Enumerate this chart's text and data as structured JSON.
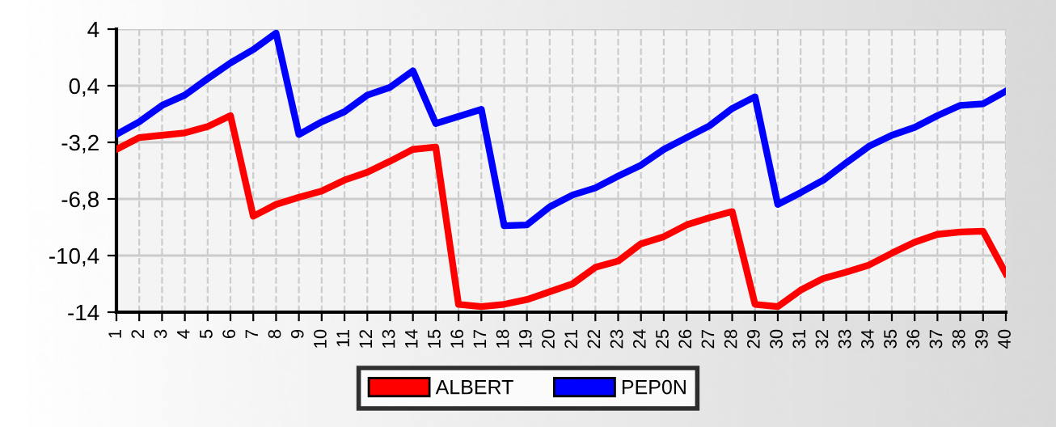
{
  "chart_data": {
    "type": "line",
    "categories": [
      "1",
      "2",
      "3",
      "4",
      "5",
      "6",
      "7",
      "8",
      "9",
      "10",
      "11",
      "12",
      "13",
      "14",
      "15",
      "16",
      "17",
      "18",
      "19",
      "20",
      "21",
      "22",
      "23",
      "24",
      "25",
      "26",
      "27",
      "28",
      "29",
      "30",
      "31",
      "32",
      "33",
      "34",
      "35",
      "36",
      "37",
      "38",
      "39",
      "40"
    ],
    "series": [
      {
        "name": "ALBERT",
        "color": "#ff0000",
        "values": [
          -3.65,
          -2.9,
          -2.75,
          -2.6,
          -2.2,
          -1.5,
          -7.9,
          -7.15,
          -6.7,
          -6.3,
          -5.6,
          -5.1,
          -4.4,
          -3.65,
          -3.5,
          -13.5,
          -13.65,
          -13.5,
          -13.2,
          -12.7,
          -12.2,
          -11.15,
          -10.75,
          -9.65,
          -9.2,
          -8.45,
          -8.0,
          -7.6,
          -13.5,
          -13.65,
          -12.6,
          -11.85,
          -11.45,
          -11.0,
          -10.25,
          -9.55,
          -9.05,
          -8.9,
          -8.85,
          -11.55
        ]
      },
      {
        "name": "PEP0N",
        "color": "#0000ff",
        "values": [
          -2.7,
          -1.9,
          -0.85,
          -0.2,
          0.85,
          1.85,
          2.7,
          3.75,
          -2.7,
          -1.9,
          -1.25,
          -0.2,
          0.3,
          1.35,
          -2.0,
          -1.55,
          -1.1,
          -8.5,
          -8.45,
          -7.3,
          -6.55,
          -6.1,
          -5.35,
          -4.65,
          -3.65,
          -2.9,
          -2.15,
          -1.05,
          -0.3,
          -7.15,
          -6.4,
          -5.6,
          -4.5,
          -3.45,
          -2.75,
          -2.25,
          -1.5,
          -0.85,
          -0.75,
          0.05
        ]
      }
    ],
    "ylim": [
      -14,
      4
    ],
    "yticks": [
      {
        "value": 4,
        "label": "4"
      },
      {
        "value": 0.4,
        "label": "0,4"
      },
      {
        "value": -3.2,
        "label": "-3,2"
      },
      {
        "value": -6.8,
        "label": "-6,8"
      },
      {
        "value": -10.4,
        "label": "-10,4"
      },
      {
        "value": -14,
        "label": "-14"
      }
    ],
    "grid": true,
    "legend": "bottom",
    "marker": "none",
    "line_style": "solid"
  }
}
